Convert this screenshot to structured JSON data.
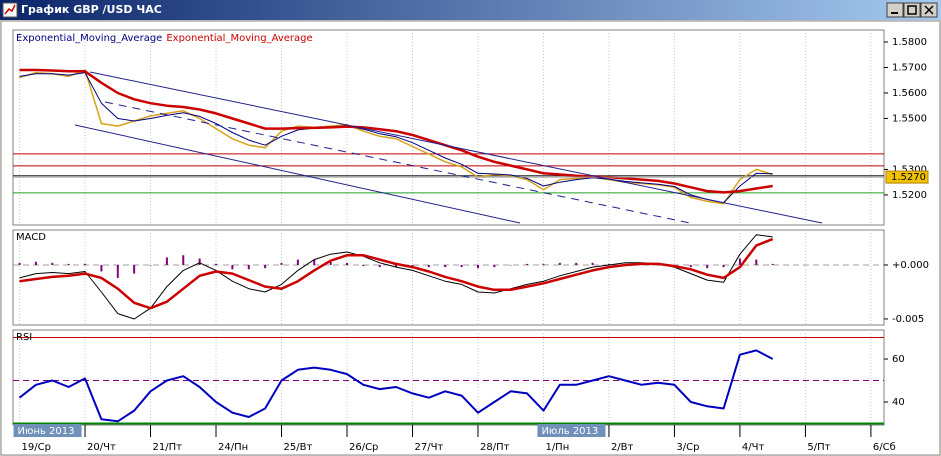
{
  "window_title": "График GBP /USD ЧАС",
  "chart_data": [
    {
      "type": "line",
      "x": [
        0,
        0.25,
        0.5,
        0.75,
        1,
        1.25,
        1.5,
        1.75,
        2,
        2.25,
        2.5,
        2.75,
        3,
        3.25,
        3.5,
        3.75,
        4,
        4.25,
        4.5,
        4.75,
        5,
        5.25,
        5.5,
        5.75,
        6,
        6.25,
        6.5,
        6.75,
        7,
        7.25,
        7.5,
        7.75,
        8,
        8.25,
        8.5,
        8.75,
        9,
        9.25,
        9.5,
        9.75,
        10,
        10.25,
        10.5,
        10.75,
        11,
        11.25,
        11.5
      ],
      "xlim": [
        -0.1,
        13.2
      ],
      "ylim": [
        1.5082,
        1.5847
      ],
      "yticks": [
        {
          "value": 1.58,
          "label": "1.5800"
        },
        {
          "value": 1.57,
          "label": "1.5700"
        },
        {
          "value": 1.56,
          "label": "1.5600"
        },
        {
          "value": 1.55,
          "label": "1.5500"
        },
        {
          "value": 1.53,
          "label": "1.5300"
        },
        {
          "value": 1.52,
          "label": "1.5200"
        }
      ],
      "current_price": {
        "value": 1.527,
        "label": "1.5270"
      },
      "levels": [
        {
          "value": 1.5361,
          "color": "#c00000"
        },
        {
          "value": 1.5314,
          "color": "#c00000"
        },
        {
          "value": 1.5275,
          "color": "#202020"
        },
        {
          "value": 1.5208,
          "color": "#20a020"
        }
      ],
      "series": [
        {
          "color": "#d9a21b",
          "width": 1.5,
          "style": "line",
          "values": [
            1.566,
            1.568,
            1.5675,
            1.5665,
            1.569,
            1.548,
            1.547,
            1.549,
            1.551,
            1.552,
            1.553,
            1.55,
            1.546,
            1.542,
            1.5395,
            1.5385,
            1.545,
            1.547,
            1.5465,
            1.547,
            1.5475,
            1.545,
            1.543,
            1.542,
            1.539,
            1.536,
            1.533,
            1.531,
            1.527,
            1.528,
            1.5275,
            1.526,
            1.522,
            1.526,
            1.5265,
            1.527,
            1.526,
            1.525,
            1.5245,
            1.524,
            1.523,
            1.519,
            1.5175,
            1.5165,
            1.526,
            1.53,
            1.528
          ]
        },
        {
          "name": "Exponential_Moving_Average",
          "color": "#000080",
          "width": 1,
          "style": "line",
          "values": [
            1.5665,
            1.5675,
            1.5675,
            1.567,
            1.568,
            1.556,
            1.55,
            1.549,
            1.55,
            1.5512,
            1.5522,
            1.5508,
            1.548,
            1.5445,
            1.5415,
            1.5395,
            1.543,
            1.5455,
            1.5462,
            1.5467,
            1.5472,
            1.5458,
            1.544,
            1.5428,
            1.5405,
            1.5375,
            1.5345,
            1.532,
            1.5285,
            1.5282,
            1.5278,
            1.5265,
            1.5235,
            1.525,
            1.526,
            1.5267,
            1.5262,
            1.5253,
            1.5247,
            1.5242,
            1.5233,
            1.52,
            1.5182,
            1.517,
            1.5235,
            1.5285,
            1.5283
          ]
        },
        {
          "name": "Exponential_Moving_Average",
          "color": "#cc0000",
          "width": 2.5,
          "style": "line",
          "values": [
            1.569,
            1.569,
            1.5688,
            1.5685,
            1.5685,
            1.564,
            1.56,
            1.5575,
            1.556,
            1.555,
            1.5545,
            1.5535,
            1.552,
            1.55,
            1.548,
            1.546,
            1.546,
            1.5462,
            1.5463,
            1.5465,
            1.5468,
            1.5465,
            1.5458,
            1.545,
            1.5435,
            1.5415,
            1.5395,
            1.5375,
            1.535,
            1.533,
            1.5315,
            1.53,
            1.5285,
            1.528,
            1.5275,
            1.5272,
            1.527,
            1.5265,
            1.526,
            1.5255,
            1.5245,
            1.523,
            1.5215,
            1.521,
            1.5215,
            1.5225,
            1.5235
          ]
        }
      ]
    },
    {
      "type": "line",
      "title": "MACD",
      "x": [
        0,
        0.25,
        0.5,
        0.75,
        1,
        1.25,
        1.5,
        1.75,
        2,
        2.25,
        2.5,
        2.75,
        3,
        3.25,
        3.5,
        3.75,
        4,
        4.25,
        4.5,
        4.75,
        5,
        5.25,
        5.5,
        5.75,
        6,
        6.25,
        6.5,
        6.75,
        7,
        7.25,
        7.5,
        7.75,
        8,
        8.25,
        8.5,
        8.75,
        9,
        9.25,
        9.5,
        9.75,
        10,
        10.25,
        10.5,
        10.75,
        11,
        11.25,
        11.5
      ],
      "xlim": [
        -0.1,
        13.2
      ],
      "ylim": [
        -0.00556,
        0.00324
      ],
      "yticks": [
        {
          "value": 0,
          "label": "+0.000"
        },
        {
          "value": -0.005,
          "label": "-0.005"
        }
      ],
      "levels": [
        {
          "value": 0,
          "color": "#a0a0a0",
          "dash": true
        }
      ],
      "series": [
        {
          "color": "#800080",
          "style": "bar",
          "values": [
            0.0002,
            0.0003,
            0.0002,
            0.0001,
            0.0001,
            -0.0006,
            -0.0012,
            -0.0008,
            0,
            0.0007,
            0.0009,
            0.0006,
            0.0001,
            -0.0004,
            -0.0004,
            -0.0003,
            0.0002,
            0.0005,
            0.0005,
            0.0003,
            0.0002,
            -0.0001,
            -0.0002,
            -0.0002,
            -0.0002,
            -0.0002,
            -0.0002,
            -0.0002,
            -0.0003,
            -0.0002,
            0,
            0.0001,
            0.0001,
            0.0002,
            0.0002,
            0.0002,
            0.0001,
            0.0001,
            0.0001,
            0,
            -0.0001,
            -0.0002,
            -0.0003,
            -0.0002,
            0.0006,
            0.0005,
            0.0001
          ]
        },
        {
          "color": "#000000",
          "width": 1,
          "style": "line",
          "values": [
            -0.0012,
            -0.0008,
            -0.0007,
            -0.0008,
            -0.0006,
            -0.0025,
            -0.0045,
            -0.005,
            -0.004,
            -0.002,
            -0.0005,
            0.0002,
            -0.0005,
            -0.0015,
            -0.0022,
            -0.0025,
            -0.0018,
            -0.0005,
            0.0005,
            0.001,
            0.0012,
            0.0008,
            0.0002,
            -0.0002,
            -0.0005,
            -0.001,
            -0.0015,
            -0.0018,
            -0.0025,
            -0.0026,
            -0.0022,
            -0.0018,
            -0.0015,
            -0.001,
            -0.0006,
            -0.0002,
            0,
            0.0002,
            0.0002,
            0.0001,
            -0.0002,
            -0.0008,
            -0.0014,
            -0.0016,
            0.001,
            0.0028,
            0.0026
          ]
        },
        {
          "color": "#cc0000",
          "width": 2.5,
          "style": "line",
          "values": [
            -0.0015,
            -0.0013,
            -0.0011,
            -0.001,
            -0.0008,
            -0.0012,
            -0.0022,
            -0.0035,
            -0.004,
            -0.0034,
            -0.0022,
            -0.001,
            -0.0006,
            -0.0008,
            -0.0014,
            -0.002,
            -0.0022,
            -0.0015,
            -0.0005,
            0.0004,
            0.0009,
            0.0009,
            0.0005,
            0.0001,
            -0.0002,
            -0.0006,
            -0.0011,
            -0.0015,
            -0.002,
            -0.0023,
            -0.0023,
            -0.002,
            -0.0017,
            -0.0013,
            -0.0009,
            -0.0005,
            -0.0002,
            0,
            0.0001,
            0.0001,
            -0.0001,
            -0.0004,
            -0.0009,
            -0.0012,
            -0.0002,
            0.0018,
            0.0024
          ]
        }
      ]
    },
    {
      "type": "line",
      "title": "RSI",
      "x": [
        0,
        0.25,
        0.5,
        0.75,
        1,
        1.25,
        1.5,
        1.75,
        2,
        2.25,
        2.5,
        2.75,
        3,
        3.25,
        3.5,
        3.75,
        4,
        4.25,
        4.5,
        4.75,
        5,
        5.25,
        5.5,
        5.75,
        6,
        6.25,
        6.5,
        6.75,
        7,
        7.25,
        7.5,
        7.75,
        8,
        8.25,
        8.5,
        8.75,
        9,
        9.25,
        9.5,
        9.75,
        10,
        10.25,
        10.5,
        10.75,
        11,
        11.25,
        11.5
      ],
      "xlim": [
        -0.1,
        13.2
      ],
      "ylim": [
        29.3,
        73.5
      ],
      "yticks": [
        60,
        40
      ],
      "levels": [
        {
          "value": 70,
          "color": "#cc0000"
        },
        {
          "value": 50,
          "color": "#800080",
          "dash": true
        },
        {
          "value": 30,
          "color": "#008000",
          "width": 2
        }
      ],
      "xticks": [
        {
          "value": 0,
          "label": "19/Ср"
        },
        {
          "value": 1,
          "label": "20/Чт"
        },
        {
          "value": 2,
          "label": "21/Пт"
        },
        {
          "value": 3,
          "label": "24/Пн"
        },
        {
          "value": 4,
          "label": "25/Вт"
        },
        {
          "value": 5,
          "label": "26/Ср"
        },
        {
          "value": 6,
          "label": "27/Чт"
        },
        {
          "value": 7,
          "label": "28/Пт"
        },
        {
          "value": 8,
          "label": "1/Пн"
        },
        {
          "value": 9,
          "label": "2/Вт"
        },
        {
          "value": 10,
          "label": "3/Ср"
        },
        {
          "value": 11,
          "label": "4/Чт"
        },
        {
          "value": 12,
          "label": "5/Пт"
        },
        {
          "value": 13,
          "label": "6/Сб"
        }
      ],
      "annotations": [
        {
          "x": 0,
          "text": "Июнь 2013"
        },
        {
          "x": 8,
          "text": "Июль 2013"
        }
      ],
      "series": [
        {
          "color": "#0000c0",
          "width": 2,
          "style": "line",
          "values": [
            42,
            48,
            50,
            47,
            51,
            32,
            31,
            36,
            45,
            50,
            52,
            47,
            40,
            35,
            33,
            37,
            50,
            55,
            56,
            55,
            53,
            48,
            46,
            47,
            44,
            42,
            45,
            43,
            35,
            40,
            45,
            44,
            36,
            48,
            48,
            50,
            52,
            50,
            48,
            49,
            48,
            40,
            38,
            37,
            62,
            64,
            60
          ]
        }
      ]
    }
  ]
}
